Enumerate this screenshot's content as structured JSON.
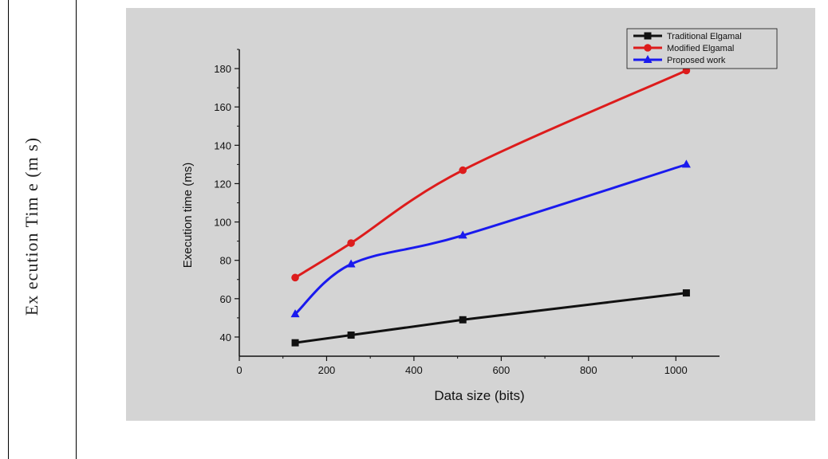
{
  "page": {
    "outer_ylabel": "Ex ecution Tim e (m s)"
  },
  "chart_data": {
    "type": "line",
    "title": "",
    "xlabel": "Data size (bits)",
    "ylabel": "Execution time (ms)",
    "xlim": [
      0,
      1100
    ],
    "ylim": [
      30,
      190
    ],
    "xticks": [
      0,
      200,
      400,
      600,
      800,
      1000
    ],
    "yticks": [
      40,
      60,
      80,
      100,
      120,
      140,
      160,
      180
    ],
    "legend_position": "top-right",
    "series": [
      {
        "name": "Traditional Elgamal",
        "color": "#111111",
        "marker": "square",
        "x": [
          128,
          256,
          512,
          1024
        ],
        "y": [
          37,
          41,
          49,
          63
        ]
      },
      {
        "name": "Modified Elgamal",
        "color": "#dd1c1c",
        "marker": "circle",
        "x": [
          128,
          256,
          512,
          1024
        ],
        "y": [
          71,
          89,
          127,
          179
        ]
      },
      {
        "name": "Proposed work",
        "color": "#1a1aee",
        "marker": "triangle",
        "x": [
          128,
          256,
          512,
          1024
        ],
        "y": [
          52,
          78,
          93,
          130
        ]
      }
    ]
  }
}
